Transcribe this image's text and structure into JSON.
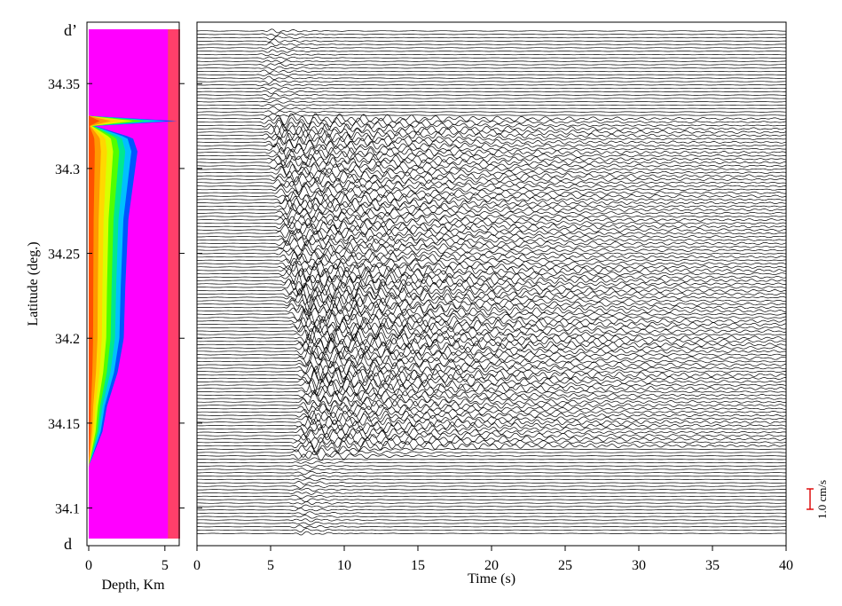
{
  "chart_data": [
    {
      "type": "heatmap",
      "xlabel": "Depth, Km",
      "ylabel": "Latitude (deg.)",
      "xlim": [
        0,
        6
      ],
      "ylim": [
        34.082,
        34.382
      ],
      "x_ticks": [
        0,
        5
      ],
      "y_ticks": [
        34.1,
        34.15,
        34.2,
        34.25,
        34.3,
        34.35
      ],
      "end_labels": {
        "top": "d’",
        "bottom": "d"
      },
      "colors": {
        "deep": "#ff00ff",
        "basin_bands": [
          "#0055ff",
          "#00c0ff",
          "#00e890",
          "#50ff00",
          "#d8ff00",
          "#ffd800",
          "#ff9800",
          "#ff5000"
        ],
        "far_edge": "#ff3f6a"
      },
      "basin_depth_km": [
        {
          "lat": 34.383,
          "depth": 0
        },
        {
          "lat": 34.331,
          "depth": 0
        },
        {
          "lat": 34.328,
          "depth": 5.8
        },
        {
          "lat": 34.325,
          "depth": 0.4
        },
        {
          "lat": 34.318,
          "depth": 2.9
        },
        {
          "lat": 34.31,
          "depth": 3.2
        },
        {
          "lat": 34.29,
          "depth": 2.9
        },
        {
          "lat": 34.27,
          "depth": 2.6
        },
        {
          "lat": 34.25,
          "depth": 2.5
        },
        {
          "lat": 34.23,
          "depth": 2.4
        },
        {
          "lat": 34.2,
          "depth": 2.3
        },
        {
          "lat": 34.18,
          "depth": 1.9
        },
        {
          "lat": 34.16,
          "depth": 1.2
        },
        {
          "lat": 34.145,
          "depth": 0.9
        },
        {
          "lat": 34.13,
          "depth": 0.25
        },
        {
          "lat": 34.125,
          "depth": 0
        },
        {
          "lat": 34.082,
          "depth": 0
        }
      ]
    },
    {
      "type": "line",
      "xlabel": "Time (s)",
      "ylabel": "",
      "xlim": [
        0,
        40
      ],
      "x_ticks": [
        0,
        5,
        10,
        15,
        20,
        25,
        30,
        35,
        40
      ],
      "trace_count": 150,
      "trace_lat_range": [
        34.085,
        34.381
      ],
      "scale_bar": {
        "label": "1.0 cm/s",
        "value": 1.0,
        "color": "#dd0000"
      },
      "arrival_time_s": [
        {
          "lat": 34.381,
          "t": 4.6
        },
        {
          "lat": 34.35,
          "t": 4.3
        },
        {
          "lat": 34.31,
          "t": 5.0
        },
        {
          "lat": 34.28,
          "t": 5.6
        },
        {
          "lat": 34.25,
          "t": 5.7
        },
        {
          "lat": 34.22,
          "t": 6.3
        },
        {
          "lat": 34.2,
          "t": 7.0
        },
        {
          "lat": 34.17,
          "t": 7.2
        },
        {
          "lat": 34.15,
          "t": 7.0
        },
        {
          "lat": 34.12,
          "t": 6.5
        },
        {
          "lat": 34.085,
          "t": 6.5
        }
      ]
    }
  ]
}
